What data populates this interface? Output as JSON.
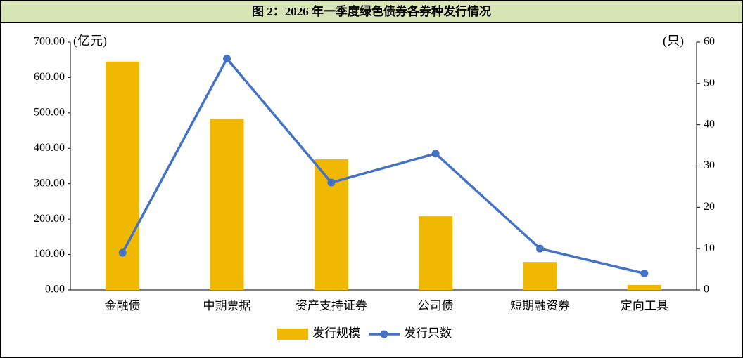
{
  "chart_data": {
    "type": "bar",
    "title": "图 2：2026 年一季度绿色债券各券种发行情况",
    "y_label": "(亿元)",
    "y2_label": "(只)",
    "categories": [
      "金融债",
      "中期票据",
      "资产支持证券",
      "公司债",
      "短期融资券",
      "定向工具"
    ],
    "series": [
      {
        "name": "发行规模",
        "type": "bar",
        "color": "#f0b800",
        "values": [
          645,
          484,
          369,
          208,
          79,
          14
        ]
      },
      {
        "name": "发行只数",
        "type": "line",
        "axis": "y2",
        "color": "#4472c4",
        "values": [
          9,
          56,
          26,
          33,
          10,
          4
        ]
      }
    ],
    "ylim": [
      0,
      700
    ],
    "yticks": [
      {
        "value": 0,
        "label": "0.00"
      },
      {
        "value": 100,
        "label": "100.00"
      },
      {
        "value": 200,
        "label": "200.00"
      },
      {
        "value": 300,
        "label": "300.00"
      },
      {
        "value": 400,
        "label": "400.00"
      },
      {
        "value": 500,
        "label": "500.00"
      },
      {
        "value": 600,
        "label": "600.00"
      },
      {
        "value": 700,
        "label": "700.00"
      }
    ],
    "y2lim": [
      0,
      60
    ],
    "y2ticks": [
      0,
      10,
      20,
      30,
      40,
      50,
      60
    ],
    "grid": false,
    "legend": "bottom"
  }
}
